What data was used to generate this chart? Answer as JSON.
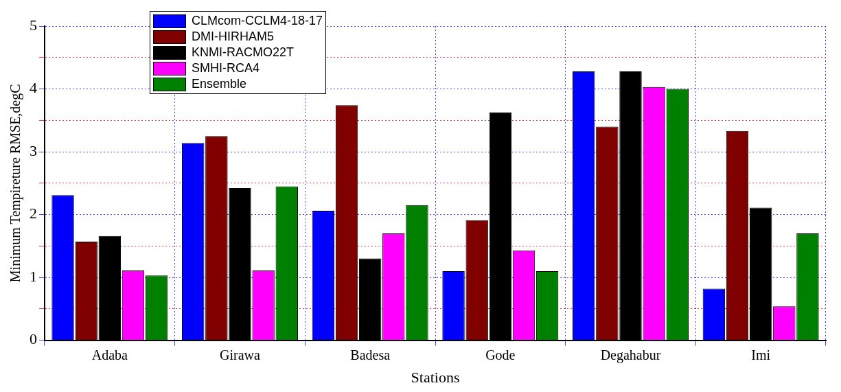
{
  "chart_data": {
    "type": "bar",
    "xlabel": "Stations",
    "ylabel": "Minimum Tempireture RMSE,degC",
    "categories": [
      "Adaba",
      "Girawa",
      "Badesa",
      "Gode",
      "Degahabur",
      "Imi"
    ],
    "series": [
      {
        "name": "CLMcom-CCLM4-18-17",
        "color": "#0000ff",
        "values": [
          2.31,
          3.14,
          2.06,
          1.1,
          4.28,
          0.82
        ]
      },
      {
        "name": "DMI-HIRHAM5",
        "color": "#800000",
        "values": [
          1.57,
          3.25,
          3.74,
          1.91,
          3.4,
          3.33
        ]
      },
      {
        "name": "KNMI-RACMO22T",
        "color": "#000000",
        "values": [
          1.66,
          2.42,
          1.3,
          3.63,
          4.28,
          2.11
        ]
      },
      {
        "name": "SMHI-RCA4",
        "color": "#ff00ff",
        "values": [
          1.11,
          1.11,
          1.7,
          1.43,
          4.03,
          0.54
        ]
      },
      {
        "name": "Ensemble",
        "color": "#008000",
        "values": [
          1.03,
          2.45,
          2.15,
          1.1,
          4.0,
          1.7
        ]
      }
    ],
    "ylim": [
      0,
      5
    ],
    "yticks": [
      0,
      {
        "value": 0.5,
        "label": null
      },
      1,
      {
        "value": 1.5,
        "label": null
      },
      2,
      {
        "value": 2.5,
        "label": null
      },
      3,
      {
        "value": 3.5,
        "label": null
      },
      4,
      {
        "value": 4.5,
        "label": null
      },
      5
    ],
    "grid": true,
    "legend": "top left"
  }
}
